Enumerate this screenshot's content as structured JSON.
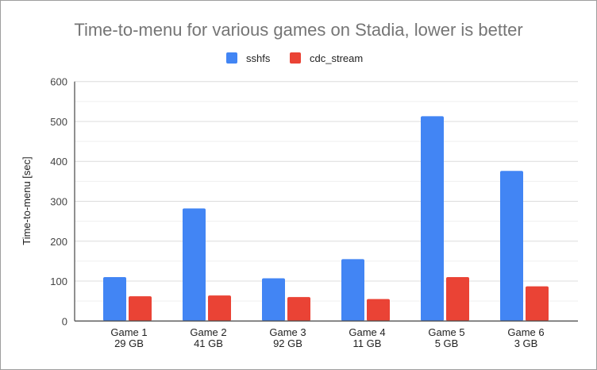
{
  "chart_data": {
    "type": "bar",
    "title": "Time-to-menu for various games on Stadia, lower is better",
    "xlabel": "",
    "ylabel": "Time-to-menu [sec]",
    "ylim": [
      0,
      600
    ],
    "yticks": [
      0,
      100,
      200,
      300,
      400,
      500,
      600
    ],
    "grid": true,
    "legend_position": "top",
    "categories": [
      [
        "Game 1",
        "29 GB"
      ],
      [
        "Game 2",
        "41 GB"
      ],
      [
        "Game 3",
        "92 GB"
      ],
      [
        "Game 4",
        "11 GB"
      ],
      [
        "Game 5",
        "5 GB"
      ],
      [
        "Game 6",
        "3 GB"
      ]
    ],
    "series": [
      {
        "name": "sshfs",
        "color": "#4285f4",
        "values": [
          110,
          282,
          107,
          155,
          513,
          376
        ]
      },
      {
        "name": "cdc_stream",
        "color": "#ea4335",
        "values": [
          62,
          64,
          60,
          55,
          110,
          87
        ]
      }
    ]
  }
}
